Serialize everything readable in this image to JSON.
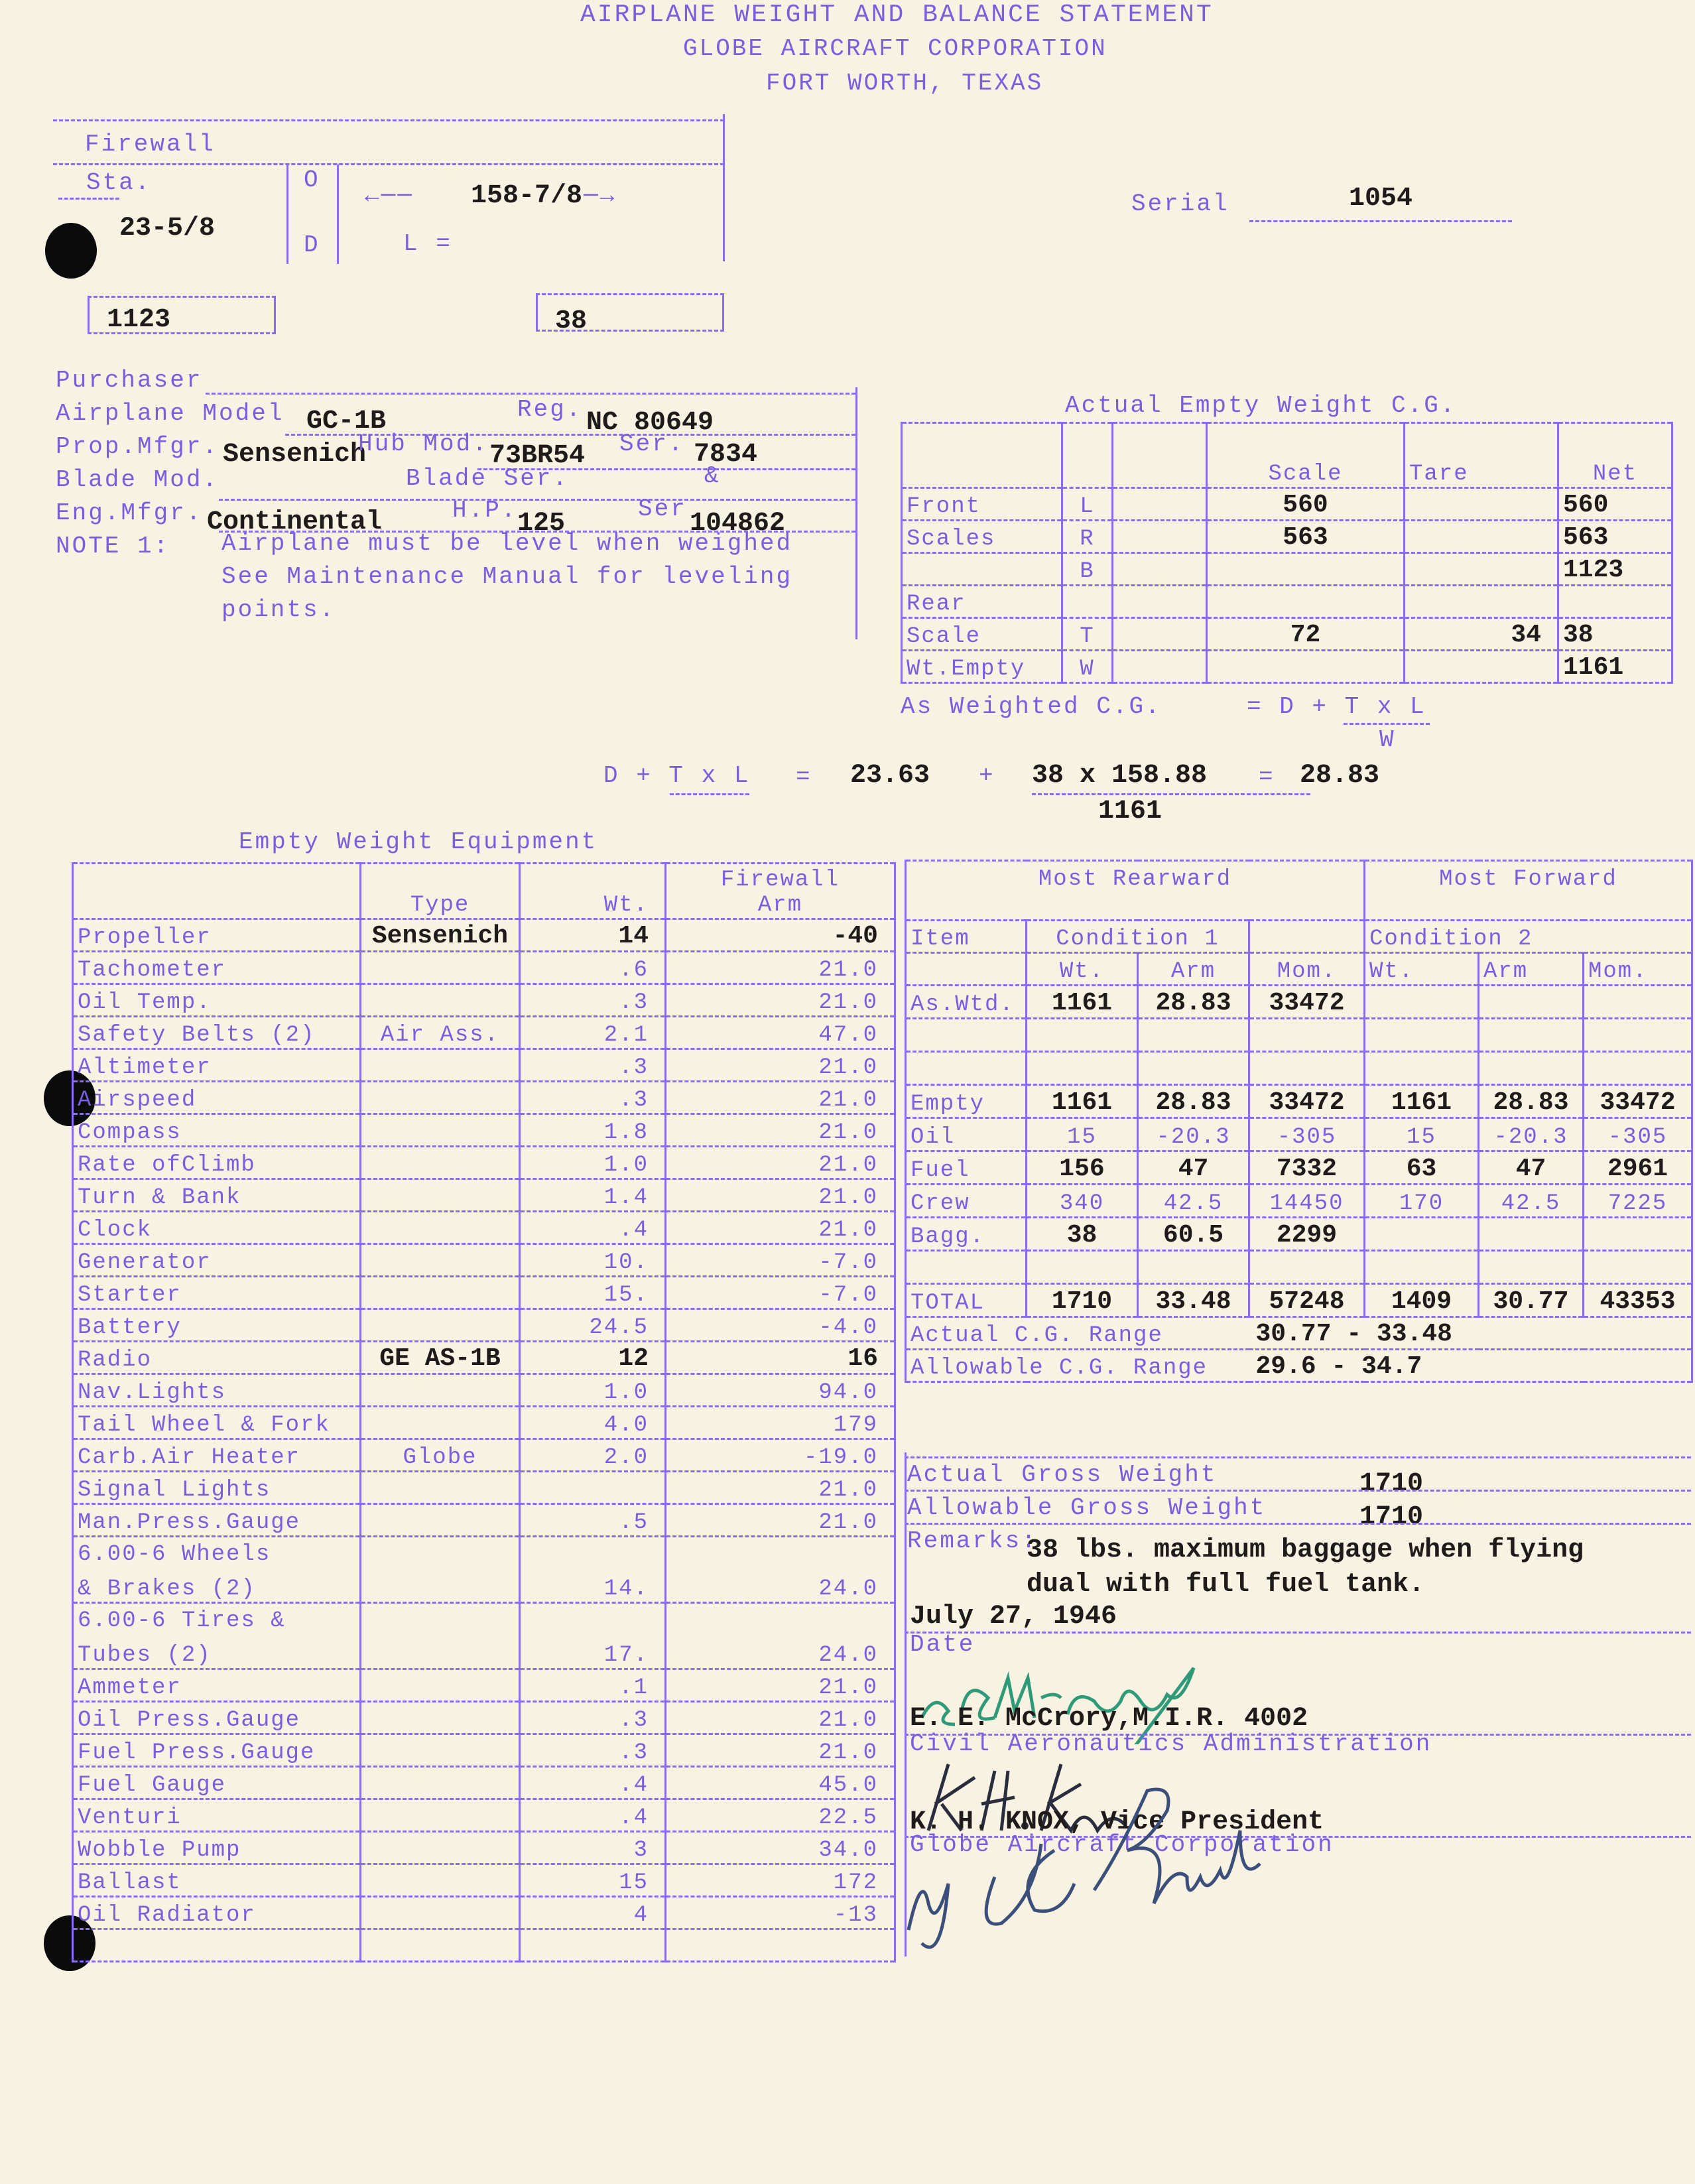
{
  "header": {
    "title": "AIRPLANE WEIGHT AND BALANCE STATEMENT",
    "company": "GLOBE AIRCRAFT CORPORATION",
    "location": "FORT WORTH, TEXAS"
  },
  "station_box": {
    "firewall_label": "Firewall",
    "sta_label": "Sta.",
    "o_label": "O",
    "d_label": "D",
    "l_label": "L =",
    "length_value": "158-7/8",
    "sta_value": "23-5/8",
    "box_left_value": "1123",
    "box_right_value": "38"
  },
  "serial": {
    "label": "Serial",
    "value": "1054"
  },
  "aircraft": {
    "purchaser_label": "Purchaser",
    "model_label": "Airplane Model",
    "model_value": "GC-1B",
    "reg_label": "Reg.",
    "reg_value": "NC 80649",
    "prop_mfgr_label": "Prop.Mfgr.",
    "prop_mfgr_value": "Sensenich",
    "hub_mod_label": "Hub Mod.",
    "hub_mod_value": "73BR54",
    "ser_label": "Ser.",
    "prop_ser_value": "7834",
    "blade_mod_label": "Blade Mod.",
    "blade_ser_label": "Blade Ser.",
    "amp_label": "&",
    "eng_mfgr_label": "Eng.Mfgr.",
    "eng_mfgr_value": "Continental",
    "hp_label": "H.P.",
    "hp_value": "125",
    "eng_ser_label": "Ser",
    "eng_ser_value": "104862",
    "note_label": "NOTE 1:",
    "note_lines": [
      "Airplane must be level when weighed",
      "See Maintenance Manual for leveling",
      "points."
    ]
  },
  "empty_cg": {
    "title": "Actual Empty Weight C.G.",
    "headers": [
      "",
      "",
      "",
      "Scale",
      "Tare",
      "Net"
    ],
    "rows": [
      {
        "label": "Front",
        "code": "L",
        "scale": "560",
        "tare": "",
        "net": "560"
      },
      {
        "label": "Scales",
        "code": "R",
        "scale": "563",
        "tare": "",
        "net": "563"
      },
      {
        "label": "",
        "code": "B",
        "scale": "",
        "tare": "",
        "net": "1123"
      },
      {
        "label": "Rear",
        "code": "",
        "scale": "",
        "tare": "",
        "net": ""
      },
      {
        "label": "Scale",
        "code": "T",
        "scale": "72",
        "tare": "34",
        "net": "38"
      },
      {
        "label": "Wt.Empty",
        "code": "W",
        "scale": "",
        "tare": "",
        "net": "1161"
      }
    ],
    "formula_label": "As Weighted C.G.",
    "formula": "= D + T x L",
    "formula_denominator": "W"
  },
  "calculation": {
    "expr": "D + T x L",
    "eq1": "=",
    "d_value": "23.63",
    "plus": "+",
    "numerator": "38 x 158.88",
    "denominator": "1161",
    "eq2": "=",
    "result": "28.83"
  },
  "equipment": {
    "title": "Empty Weight Equipment",
    "headers": {
      "item": "",
      "type": "Type",
      "wt": "Wt.",
      "arm_top": "Firewall",
      "arm": "Arm"
    },
    "rows": [
      {
        "item": "Propeller",
        "type": "Sensenich",
        "wt": "14",
        "arm": "-40",
        "ink": "black"
      },
      {
        "item": "Tachometer",
        "type": "",
        "wt": ".6",
        "arm": "21.0",
        "ink": "purple"
      },
      {
        "item": "Oil Temp.",
        "type": "",
        "wt": ".3",
        "arm": "21.0",
        "ink": "purple"
      },
      {
        "item": "Safety Belts (2)",
        "type": "Air Ass.",
        "wt": "2.1",
        "arm": "47.0",
        "ink": "purple"
      },
      {
        "item": "Altimeter",
        "type": "",
        "wt": ".3",
        "arm": "21.0",
        "ink": "purple"
      },
      {
        "item": "Airspeed",
        "type": "",
        "wt": ".3",
        "arm": "21.0",
        "ink": "purple"
      },
      {
        "item": "Compass",
        "type": "",
        "wt": "1.8",
        "arm": "21.0",
        "ink": "purple"
      },
      {
        "item": "Rate ofClimb",
        "type": "",
        "wt": "1.0",
        "arm": "21.0",
        "ink": "purple"
      },
      {
        "item": "Turn & Bank",
        "type": "",
        "wt": "1.4",
        "arm": "21.0",
        "ink": "purple"
      },
      {
        "item": "Clock",
        "type": "",
        "wt": ".4",
        "arm": "21.0",
        "ink": "purple"
      },
      {
        "item": "Generator",
        "type": "",
        "wt": "10.",
        "arm": "-7.0",
        "ink": "purple"
      },
      {
        "item": "Starter",
        "type": "",
        "wt": "15.",
        "arm": "-7.0",
        "ink": "purple"
      },
      {
        "item": "Battery",
        "type": "",
        "wt": "24.5",
        "arm": "-4.0",
        "ink": "purple"
      },
      {
        "item": "Radio",
        "type": "GE AS-1B",
        "wt": "12",
        "arm": "16",
        "ink": "black"
      },
      {
        "item": "Nav.Lights",
        "type": "",
        "wt": "1.0",
        "arm": "94.0",
        "ink": "purple"
      },
      {
        "item": "Tail Wheel & Fork",
        "type": "",
        "wt": "4.0",
        "arm": "179",
        "ink": "purple"
      },
      {
        "item": "Carb.Air Heater",
        "type": "Globe",
        "wt": "2.0",
        "arm": "-19.0",
        "ink": "purple"
      },
      {
        "item": "Signal Lights",
        "type": "",
        "wt": "",
        "arm": "21.0",
        "ink": "purple"
      },
      {
        "item": "Man.Press.Gauge",
        "type": "",
        "wt": ".5",
        "arm": "21.0",
        "ink": "purple"
      },
      {
        "item": "6.00-6 Wheels",
        "item2": "& Brakes (2)",
        "type": "",
        "wt": "14.",
        "arm": "24.0",
        "ink": "purple"
      },
      {
        "item": "6.00-6 Tires &",
        "item2": "Tubes (2)",
        "type": "",
        "wt": "17.",
        "arm": "24.0",
        "ink": "purple"
      },
      {
        "item": "Ammeter",
        "type": "",
        "wt": ".1",
        "arm": "21.0",
        "ink": "purple"
      },
      {
        "item": "Oil Press.Gauge",
        "type": "",
        "wt": ".3",
        "arm": "21.0",
        "ink": "purple"
      },
      {
        "item": "Fuel Press.Gauge",
        "type": "",
        "wt": ".3",
        "arm": "21.0",
        "ink": "purple"
      },
      {
        "item": "Fuel Gauge",
        "type": "",
        "wt": ".4",
        "arm": "45.0",
        "ink": "purple"
      },
      {
        "item": "Venturi",
        "type": "",
        "wt": ".4",
        "arm": "22.5",
        "ink": "purple"
      },
      {
        "item": "Wobble Pump",
        "type": "",
        "wt": "3",
        "arm": "34.0",
        "ink": "purple"
      },
      {
        "item": "Ballast",
        "type": "",
        "wt": "15",
        "arm": "172",
        "ink": "purple"
      },
      {
        "item": "Oil Radiator",
        "type": "",
        "wt": "4",
        "arm": "-13",
        "ink": "purple"
      }
    ]
  },
  "loading": {
    "rearward_label": "Most Rearward",
    "forward_label": "Most Forward",
    "item_label": "Item",
    "cond1_label": "Condition 1",
    "cond2_label": "Condition 2",
    "sub_headers": [
      "Wt.",
      "Arm",
      "Mom.",
      "Wt.",
      "Arm",
      "Mom."
    ],
    "rows": [
      {
        "item": "As.Wtd.",
        "cells": [
          "1161",
          "28.83",
          "33472",
          "",
          "",
          ""
        ],
        "ink": "black"
      },
      {
        "item": "",
        "cells": [
          "",
          "",
          "",
          "",
          "",
          ""
        ],
        "ink": "black"
      },
      {
        "item": "",
        "cells": [
          "",
          "",
          "",
          "",
          "",
          ""
        ],
        "ink": "black"
      },
      {
        "item": "Empty",
        "cells": [
          "1161",
          "28.83",
          "33472",
          "1161",
          "28.83",
          "33472"
        ],
        "ink": "black"
      },
      {
        "item": "Oil",
        "cells": [
          "15",
          "-20.3",
          "-305",
          "15",
          "-20.3",
          "-305"
        ],
        "ink": "purple"
      },
      {
        "item": "Fuel",
        "cells": [
          "156",
          "47",
          "7332",
          "63",
          "47",
          "2961"
        ],
        "ink": "black"
      },
      {
        "item": "Crew",
        "cells": [
          "340",
          "42.5",
          "14450",
          "170",
          "42.5",
          "7225"
        ],
        "ink": "purple"
      },
      {
        "item": "Bagg.",
        "cells": [
          "38",
          "60.5",
          "2299",
          "",
          "",
          ""
        ],
        "ink": "black"
      },
      {
        "item": "",
        "cells": [
          "",
          "",
          "",
          "",
          "",
          ""
        ],
        "ink": "black"
      },
      {
        "item": "TOTAL",
        "cells": [
          "1710",
          "33.48",
          "57248",
          "1409",
          "30.77",
          "43353"
        ],
        "ink": "black"
      }
    ],
    "actual_cg_range_label": "Actual C.G. Range",
    "actual_cg_range": "30.77 - 33.48",
    "allowable_cg_range_label": "Allowable C.G. Range",
    "allowable_cg_range": "29.6 - 34.7",
    "actual_gross_label": "Actual Gross Weight",
    "actual_gross": "1710",
    "allowable_gross_label": "Allowable Gross Weight",
    "allowable_gross": "1710",
    "remarks_label": "Remarks:",
    "remarks_lines": [
      "38 lbs. maximum baggage when flying",
      "dual with full fuel tank."
    ]
  },
  "signoff": {
    "date_value": "July 27, 1946",
    "date_label": "Date",
    "signature1": "E E McCrory",
    "inspector": "E. E. McCrory,M.I.R. 4002",
    "inspector_org": "Civil Aeronautics Administration",
    "signature2": "K. H. Knox",
    "officer": "K. H. KNOX, Vice President",
    "officer_org": "Globe Aircraft Corporation",
    "signature3": "O. C. Smith"
  },
  "colors": {
    "paper": "#f7f2e1",
    "form_ink": "#7a5ee0",
    "typed_ink": "#1f1b1b",
    "signature_green": "#2f9a78",
    "signature_blue": "#3b4f7a"
  }
}
